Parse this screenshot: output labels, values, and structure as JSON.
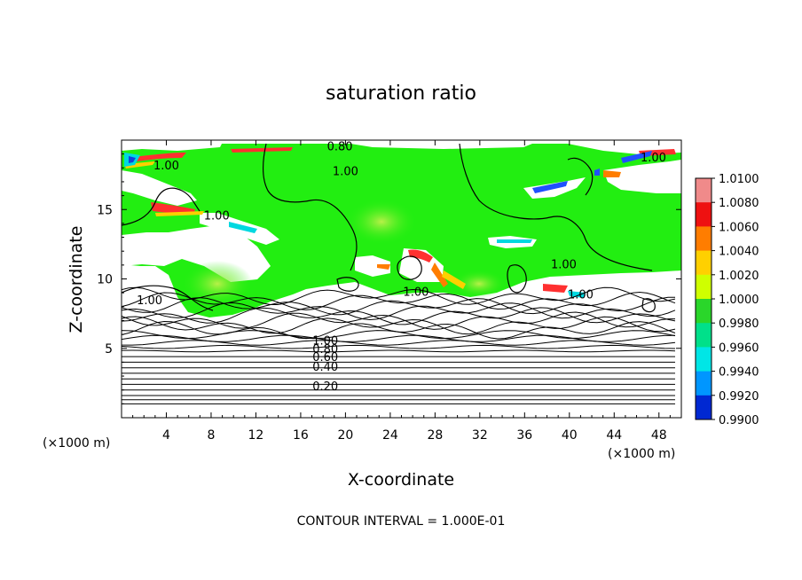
{
  "chart_data": {
    "type": "heatmap",
    "title": "saturation ratio",
    "xlabel": "X-coordinate",
    "ylabel": "Z-coordinate",
    "x_unit_left": "(×1000 m)",
    "x_unit_right": "(×1000 m)",
    "xlim": [
      0,
      50
    ],
    "ylim": [
      0,
      20
    ],
    "x_ticks": [
      "4",
      "8",
      "12",
      "16",
      "20",
      "24",
      "28",
      "32",
      "36",
      "40",
      "44",
      "48"
    ],
    "y_ticks": [
      "5",
      "10",
      "15"
    ],
    "footer": "CONTOUR INTERVAL = 1.000E-01",
    "contour_labels": [
      {
        "text": "0.80",
        "x": 19.5,
        "z": 19.6
      },
      {
        "text": "1.00",
        "x": 4.0,
        "z": 18.2
      },
      {
        "text": "1.00",
        "x": 20.0,
        "z": 17.8
      },
      {
        "text": "1.00",
        "x": 47.5,
        "z": 18.8
      },
      {
        "text": "1.00",
        "x": 8.5,
        "z": 14.6
      },
      {
        "text": "1.00",
        "x": 39.5,
        "z": 11.1
      },
      {
        "text": "1.00",
        "x": 26.3,
        "z": 9.1
      },
      {
        "text": "1.00",
        "x": 41.0,
        "z": 8.9
      },
      {
        "text": "1.00",
        "x": 2.5,
        "z": 8.5
      },
      {
        "text": "1.00",
        "x": 18.2,
        "z": 5.6
      },
      {
        "text": "0.80",
        "x": 18.2,
        "z": 5.0
      },
      {
        "text": "0.60",
        "x": 18.2,
        "z": 4.4
      },
      {
        "text": "0.40",
        "x": 18.2,
        "z": 3.7
      },
      {
        "text": "0.20",
        "x": 18.2,
        "z": 2.3
      }
    ],
    "colorbar": {
      "labels": [
        "1.0100",
        "1.0080",
        "1.0060",
        "1.0040",
        "1.0020",
        "1.0000",
        "0.9980",
        "0.9960",
        "0.9940",
        "0.9920",
        "0.9900"
      ],
      "colors": [
        "#f08a8a",
        "#ee1111",
        "#ff7d00",
        "#ffd000",
        "#cfff00",
        "#2ad62a",
        "#00e08a",
        "#00e6e6",
        "#0096ff",
        "#0028d2",
        "#3a00a0"
      ]
    },
    "field": {
      "green": "#22ee11",
      "green_light": "#a8f040",
      "red": "#f02020",
      "orange": "#ffa000",
      "yellow": "#ffe000",
      "cyan": "#00e0e0",
      "blue": "#2050ff",
      "white": "#ffffff"
    }
  }
}
